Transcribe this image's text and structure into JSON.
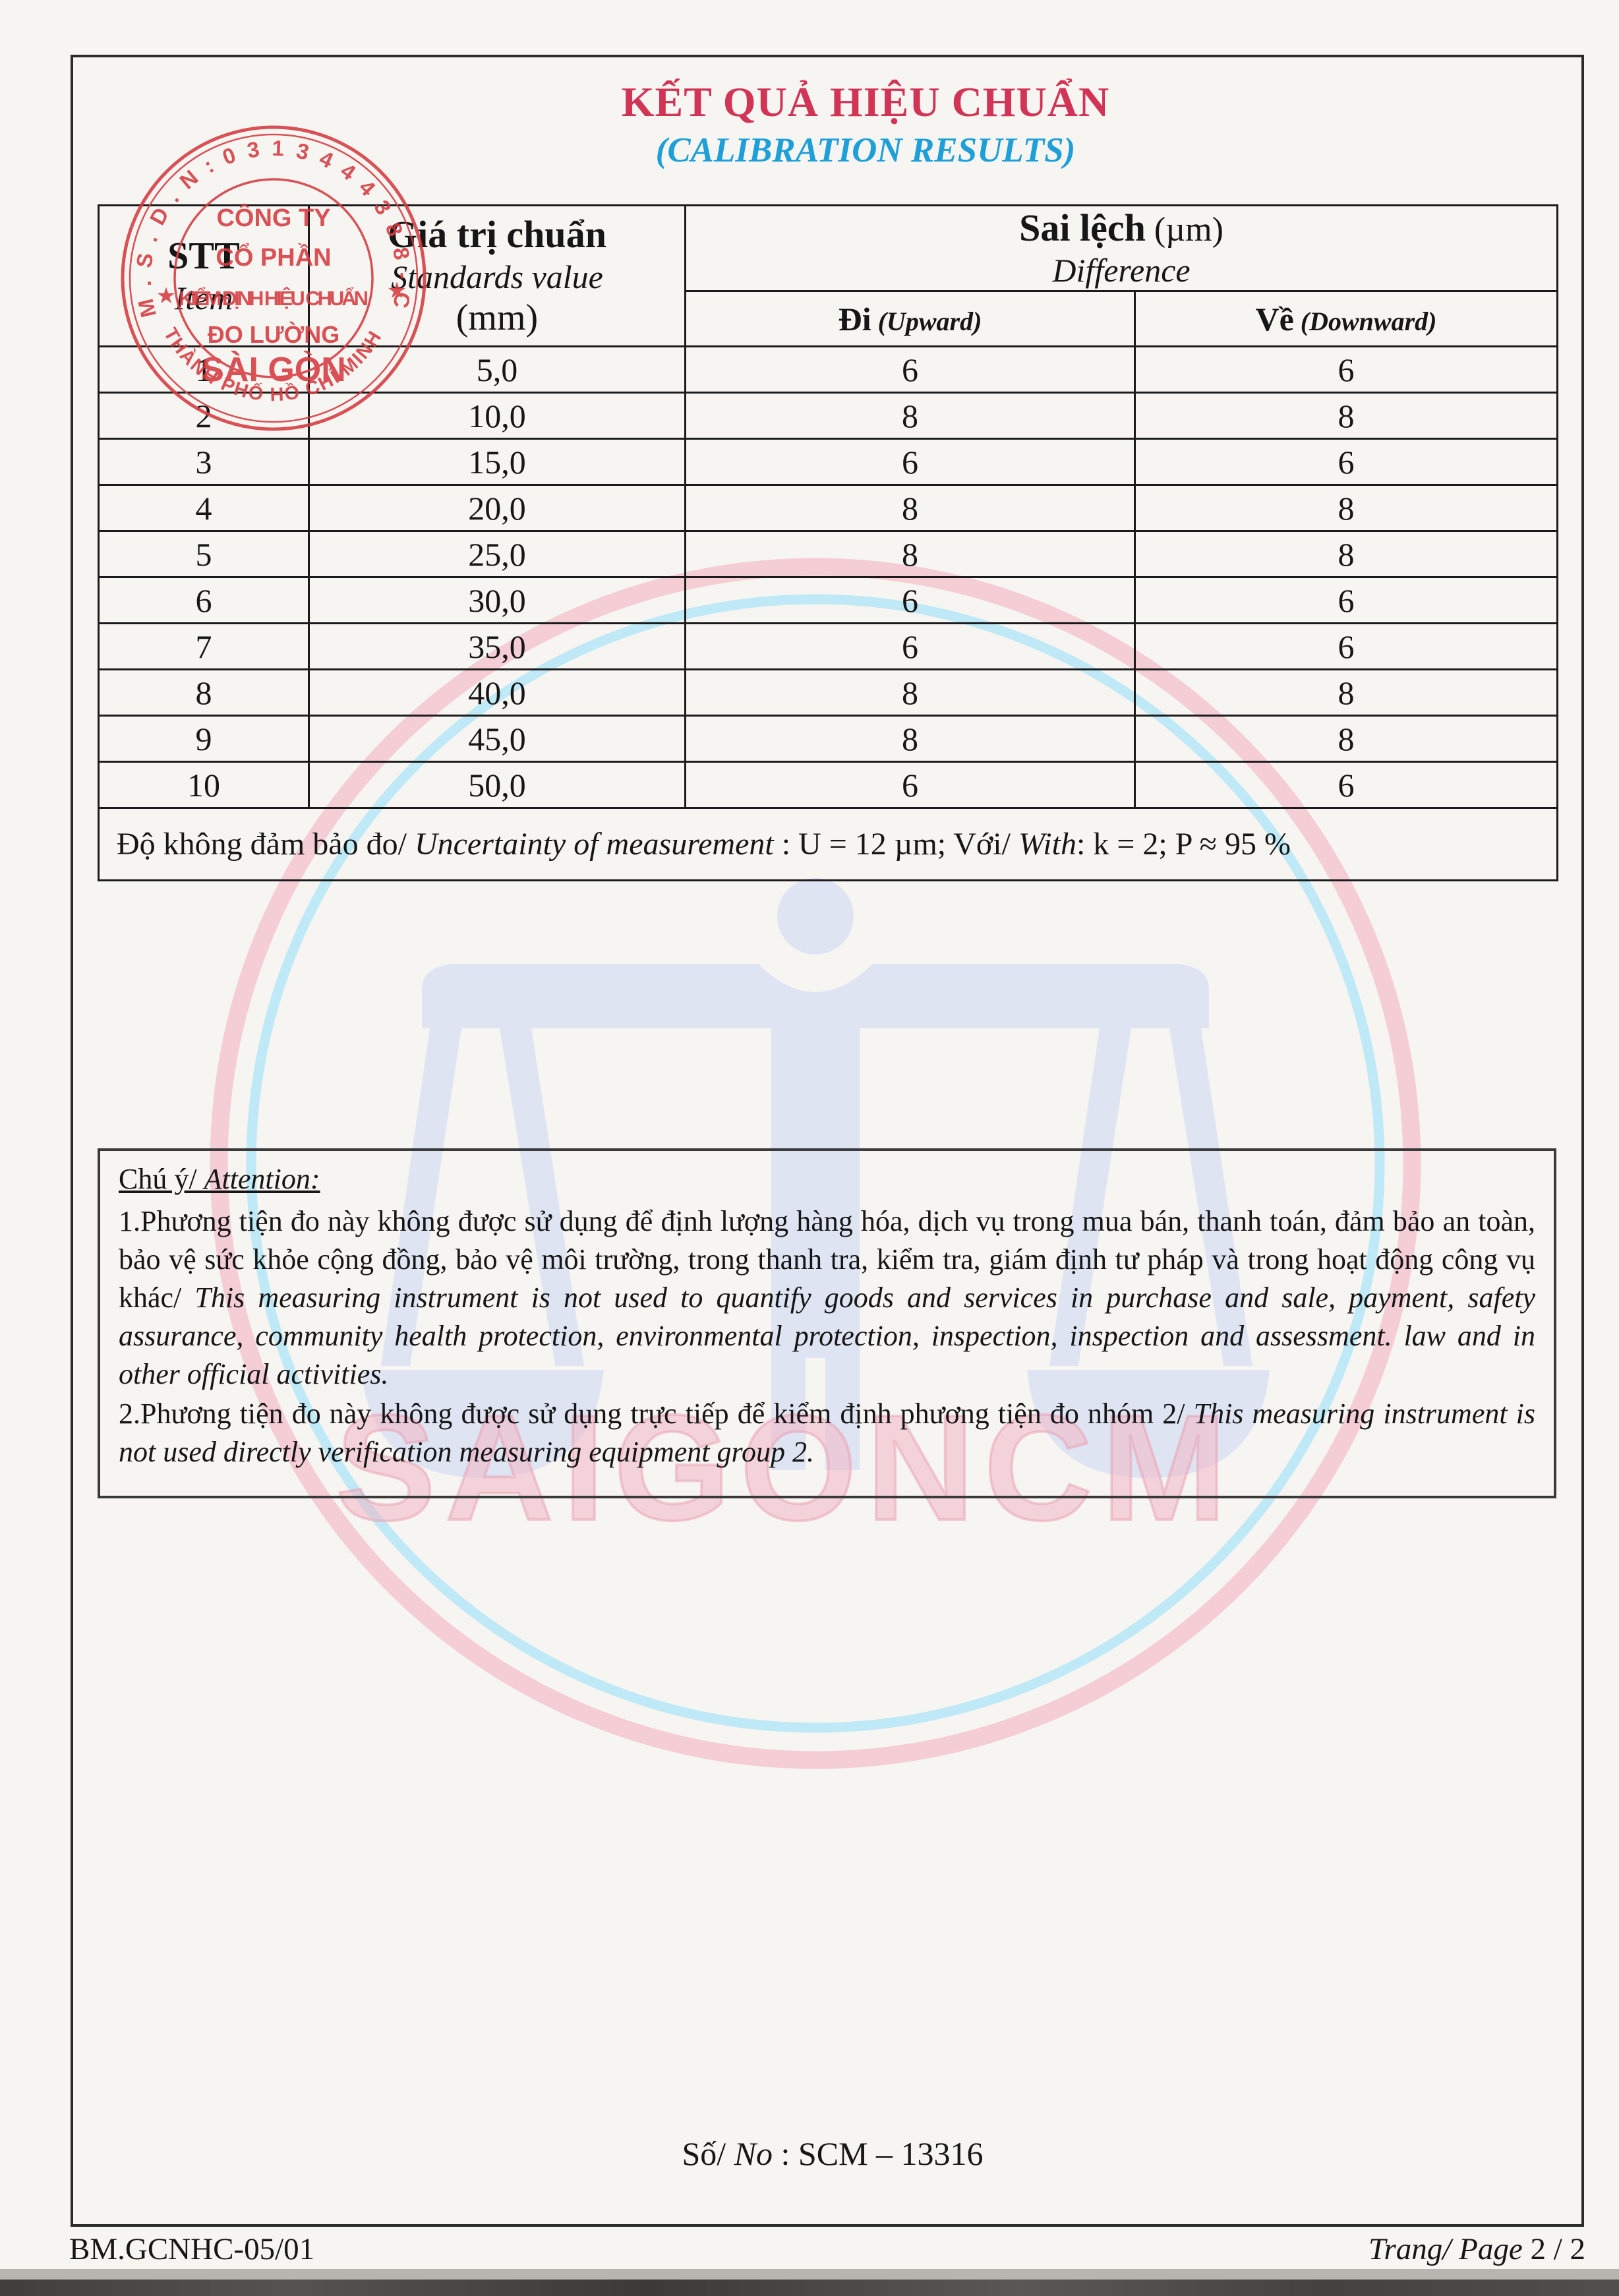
{
  "title": {
    "vi": "KẾT QUẢ HIỆU CHUẨN",
    "en": "(CALIBRATION RESULTS)"
  },
  "colors": {
    "title_red": "#d23456",
    "subtitle_blue": "#1e9fd8",
    "stamp_red": "#d63a40",
    "watermark_pink_ring": "#f5cdd5",
    "watermark_blue_ring": "#bfe9f6",
    "watermark_pale_emblem": "#dfe4f3"
  },
  "table": {
    "header": {
      "stt": "STT",
      "item": "Item",
      "std_vi": "Giá trị chuẩn",
      "std_en": "Standards value",
      "std_unit": "(mm)",
      "diff_vi": "Sai lệch",
      "diff_unit": " (µm)",
      "diff_en": "Difference",
      "up_vi": "Đi",
      "up_en": " (Upward)",
      "down_vi": "Về",
      "down_en": " (Downward)"
    },
    "rows": [
      {
        "stt": "1",
        "std": "5,0",
        "up": "6",
        "down": "6"
      },
      {
        "stt": "2",
        "std": "10,0",
        "up": "8",
        "down": "8"
      },
      {
        "stt": "3",
        "std": "15,0",
        "up": "6",
        "down": "6"
      },
      {
        "stt": "4",
        "std": "20,0",
        "up": "8",
        "down": "8"
      },
      {
        "stt": "5",
        "std": "25,0",
        "up": "8",
        "down": "8"
      },
      {
        "stt": "6",
        "std": "30,0",
        "up": "6",
        "down": "6"
      },
      {
        "stt": "7",
        "std": "35,0",
        "up": "6",
        "down": "6"
      },
      {
        "stt": "8",
        "std": "40,0",
        "up": "8",
        "down": "8"
      },
      {
        "stt": "9",
        "std": "45,0",
        "up": "8",
        "down": "8"
      },
      {
        "stt": "10",
        "std": "50,0",
        "up": "6",
        "down": "6"
      }
    ],
    "uncertainty": {
      "vi": "Độ không đảm bảo đo/ ",
      "en": "Uncertainty of measurement",
      "mid": " : U = 12 µm; Với/ ",
      "with_en": "With",
      "tail": ": k = 2; P ≈ 95 %"
    }
  },
  "attention": {
    "heading_vi": "Chú ý/ ",
    "heading_en": "Attention:",
    "note1_vi": "1.Phương tiện đo này không được sử dụng để định lượng hàng hóa, dịch vụ trong mua bán, thanh toán, đảm bảo an toàn, bảo vệ sức khỏe cộng đồng, bảo vệ môi trường, trong thanh tra, kiểm tra, giám định tư pháp và trong hoạt động công vụ khác/ ",
    "note1_en": "This measuring instrument is not used to quantify goods and services in purchase and sale, payment, safety assurance, community health protection, environmental protection, inspection, inspection and assessment. law and in other official activities.",
    "note2_vi": "2.Phương tiện đo này không được sử dụng trực tiếp để kiểm định phương tiện đo nhóm 2/ ",
    "note2_en": "This measuring instrument is not used directly verification measuring equipment group 2."
  },
  "certificate_no": {
    "vi": "Số/ ",
    "en": "No",
    "value": " : SCM – 13316"
  },
  "footer": {
    "form_code": "BM.GCNHC-05/01",
    "page_label_vi": "Trang/ ",
    "page_label_en": "Page",
    "page_num": " 2 / 2"
  },
  "stamp": {
    "arc_top": "M.S.D.N:0313444388-C.T.C.P",
    "arc_bottom": "THÀNH PHỐ HỒ CHÍ MINH",
    "line1": "CÔNG TY",
    "line2": "CỔ PHẦN",
    "line3": "KIỂM ĐỊNH HIỆU CHUẨN",
    "line4": "ĐO LƯỜNG",
    "line5": "SÀI GÒN",
    "star": "★"
  },
  "watermark": {
    "text": "SAIGONCM"
  }
}
